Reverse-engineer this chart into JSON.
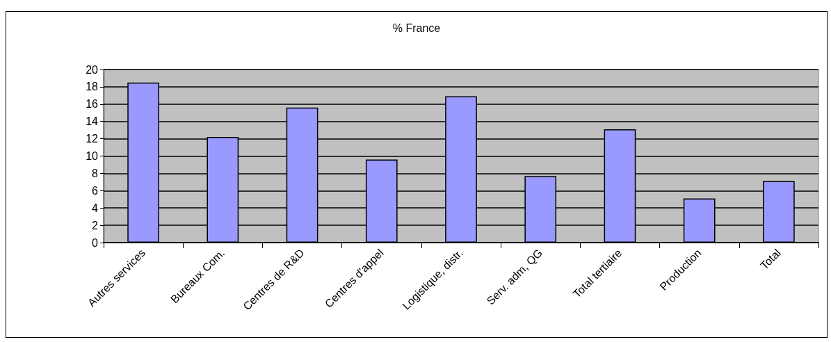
{
  "chart_data": {
    "type": "bar",
    "title": "% France",
    "categories": [
      "Autres services",
      "Bureaux Com.",
      "Centres de R&D",
      "Centres d'appel",
      "Logistique, distr.",
      "Serv. adm, QG",
      "Total tertiaire",
      "Production",
      "Total"
    ],
    "values": [
      18.5,
      12.2,
      15.6,
      9.6,
      16.9,
      7.7,
      13.1,
      5.1,
      7.1
    ],
    "color": "#9999ff",
    "ylim": [
      0,
      20
    ],
    "yticks": [
      0,
      2,
      4,
      6,
      8,
      10,
      12,
      14,
      16,
      18,
      20
    ],
    "grid": "y"
  }
}
